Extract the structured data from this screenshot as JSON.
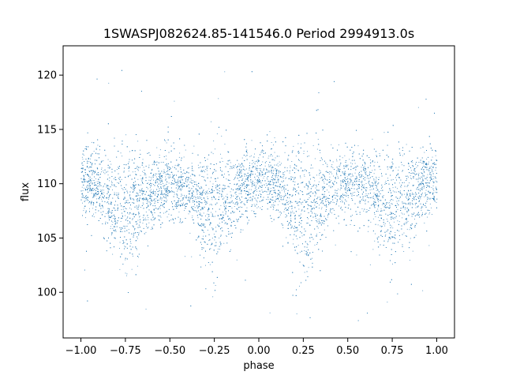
{
  "chart_data": {
    "type": "scatter",
    "title": "1SWASPJ082624.85-141546.0 Period 2994913.0s",
    "xlabel": "phase",
    "ylabel": "flux",
    "xlim": [
      -1.1,
      1.1
    ],
    "ylim": [
      95.8,
      122.7
    ],
    "x_ticks": [
      -1.0,
      -0.75,
      -0.5,
      -0.25,
      0.0,
      0.25,
      0.5,
      0.75,
      1.0
    ],
    "x_tick_labels": [
      "−1.00",
      "−0.75",
      "−0.50",
      "−0.25",
      "0.00",
      "0.25",
      "0.50",
      "0.75",
      "1.00"
    ],
    "y_ticks": [
      100,
      105,
      110,
      115,
      120
    ],
    "y_tick_labels": [
      "100",
      "105",
      "110",
      "115",
      "120"
    ],
    "grid": false,
    "marker_color": "#1f77b4",
    "series": [
      {
        "phase_profile": {
          "phase": [
            0.0,
            0.05,
            0.1,
            0.15,
            0.2,
            0.25,
            0.3,
            0.35,
            0.4,
            0.45,
            0.5
          ],
          "median_flux": [
            110.0,
            110.2,
            109.8,
            108.8,
            108.2,
            107.8,
            108.0,
            109.0,
            109.5,
            109.8,
            110.0
          ],
          "spread": [
            1.6,
            1.6,
            1.7,
            2.0,
            2.6,
            3.0,
            2.6,
            2.0,
            1.7,
            1.6,
            1.6
          ]
        },
        "outlier_range": [
          97,
          121
        ],
        "symmetric_about_zero": true
      }
    ]
  }
}
